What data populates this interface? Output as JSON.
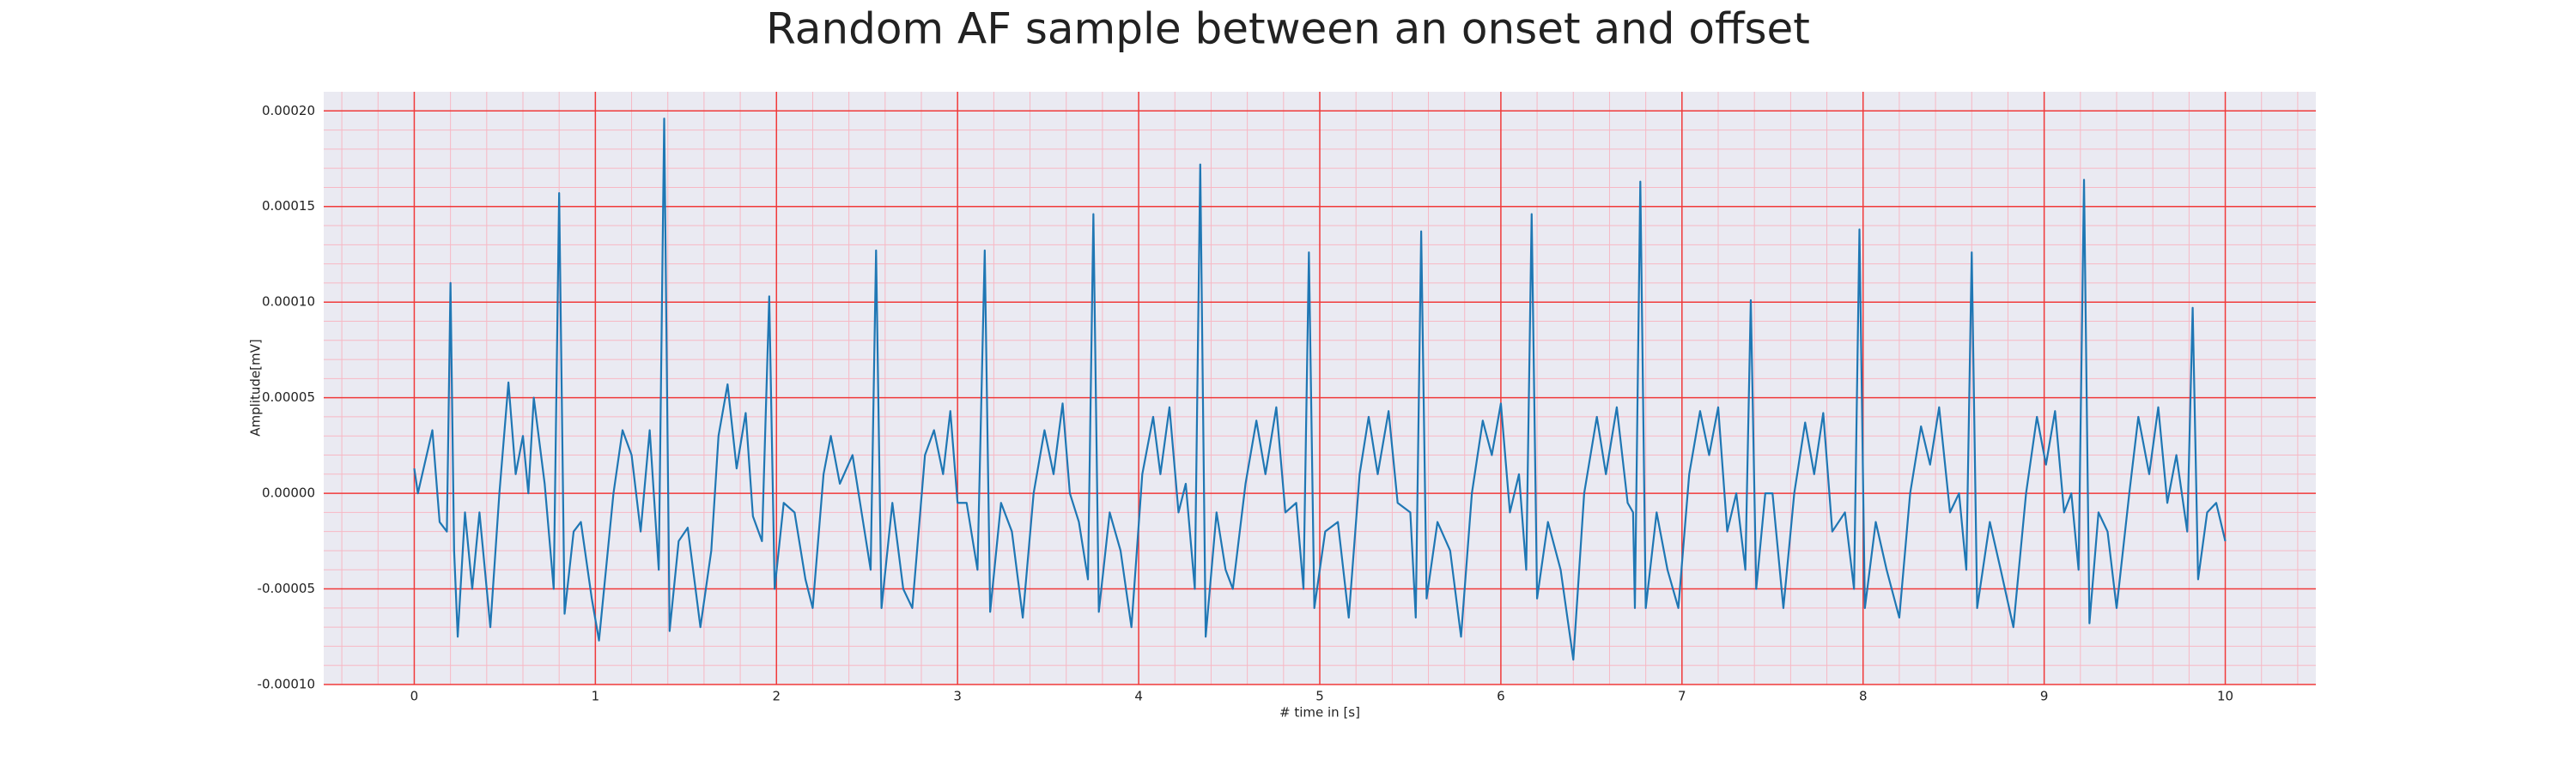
{
  "chart_data": {
    "type": "line",
    "title": "Random AF sample between an onset and offset",
    "xlabel": "# time in [s]",
    "ylabel": "Amplitude[mV]",
    "color": "#1f77b4",
    "background": "#eaeaf2",
    "grid": true,
    "grid_color": "#f03a3a",
    "minor_grid": true,
    "minor_grid_color": "#f7b8c4",
    "xlim": [
      -0.5,
      10.5
    ],
    "ylim": [
      -0.0001,
      0.00021
    ],
    "xticks": [
      0,
      1,
      2,
      3,
      4,
      5,
      6,
      7,
      8,
      9,
      10
    ],
    "yticks": [
      {
        "value": -0.0001,
        "label": "-0.00010"
      },
      {
        "value": -5e-05,
        "label": "-0.00005"
      },
      {
        "value": 0,
        "label": "0.00000"
      },
      {
        "value": 5e-05,
        "label": "0.00005"
      },
      {
        "value": 0.0001,
        "label": "0.00010"
      },
      {
        "value": 0.00015,
        "label": "0.00015"
      },
      {
        "value": 0.0002,
        "label": "0.00020"
      }
    ],
    "xminorticks": [
      -0.4,
      -0.2,
      0,
      0.2,
      0.4,
      0.6,
      0.8,
      1,
      1.2,
      1.4,
      1.6,
      1.8,
      2,
      2.2,
      2.4,
      2.6,
      2.8,
      3,
      3.2,
      3.4,
      3.6,
      3.8,
      4,
      4.2,
      4.4,
      4.6,
      4.8,
      5,
      5.2,
      5.4,
      5.6,
      5.8,
      6,
      6.2,
      6.4,
      6.6,
      6.8,
      7,
      7.2,
      7.4,
      7.6,
      7.8,
      8,
      8.2,
      8.4,
      8.6,
      8.8,
      9,
      9.2,
      9.4,
      9.6,
      9.8,
      10,
      10.2,
      10.4
    ],
    "yminorticks": [
      -0.0001,
      -9e-05,
      -8e-05,
      -7e-05,
      -6e-05,
      -5e-05,
      -4e-05,
      -3e-05,
      -2e-05,
      -1e-05,
      0,
      1e-05,
      2e-05,
      3e-05,
      4e-05,
      5e-05,
      6e-05,
      7e-05,
      8e-05,
      9e-05,
      0.0001,
      0.00011,
      0.00012,
      0.00013,
      0.00014,
      0.00015,
      0.00016,
      0.00017,
      0.00018,
      0.00019,
      0.0002
    ],
    "x": [
      0,
      0.02,
      0.1,
      0.14,
      0.18,
      0.2,
      0.22,
      0.24,
      0.28,
      0.32,
      0.36,
      0.42,
      0.47,
      0.52,
      0.56,
      0.6,
      0.63,
      0.66,
      0.72,
      0.77,
      0.8,
      0.83,
      0.88,
      0.92,
      0.98,
      1.02,
      1.1,
      1.15,
      1.2,
      1.25,
      1.3,
      1.35,
      1.38,
      1.41,
      1.46,
      1.51,
      1.58,
      1.64,
      1.68,
      1.73,
      1.78,
      1.83,
      1.87,
      1.92,
      1.96,
      1.99,
      2.04,
      2.1,
      2.16,
      2.2,
      2.26,
      2.3,
      2.35,
      2.42,
      2.47,
      2.52,
      2.55,
      2.58,
      2.64,
      2.7,
      2.75,
      2.82,
      2.87,
      2.92,
      2.96,
      3.0,
      3.05,
      3.11,
      3.15,
      3.18,
      3.24,
      3.3,
      3.36,
      3.42,
      3.48,
      3.53,
      3.58,
      3.62,
      3.67,
      3.72,
      3.75,
      3.78,
      3.84,
      3.9,
      3.96,
      4.02,
      4.08,
      4.12,
      4.17,
      4.22,
      4.26,
      4.31,
      4.34,
      4.37,
      4.43,
      4.48,
      4.52,
      4.59,
      4.65,
      4.7,
      4.76,
      4.81,
      4.87,
      4.91,
      4.94,
      4.97,
      5.03,
      5.1,
      5.16,
      5.22,
      5.27,
      5.32,
      5.38,
      5.43,
      5.5,
      5.53,
      5.56,
      5.59,
      5.65,
      5.72,
      5.78,
      5.84,
      5.9,
      5.95,
      6.0,
      6.05,
      6.1,
      6.14,
      6.17,
      6.2,
      6.26,
      6.33,
      6.4,
      6.46,
      6.53,
      6.58,
      6.64,
      6.7,
      6.73,
      6.74,
      6.77,
      6.8,
      6.86,
      6.92,
      6.98,
      7.04,
      7.1,
      7.15,
      7.2,
      7.25,
      7.3,
      7.35,
      7.38,
      7.41,
      7.46,
      7.5,
      7.56,
      7.62,
      7.68,
      7.73,
      7.78,
      7.83,
      7.9,
      7.95,
      7.98,
      8.01,
      8.07,
      8.13,
      8.2,
      8.26,
      8.32,
      8.37,
      8.42,
      8.48,
      8.53,
      8.57,
      8.6,
      8.63,
      8.7,
      8.76,
      8.83,
      8.9,
      8.96,
      9.01,
      9.06,
      9.11,
      9.15,
      9.19,
      9.22,
      9.25,
      9.3,
      9.35,
      9.4,
      9.47,
      9.52,
      9.58,
      9.63,
      9.68,
      9.73,
      9.79,
      9.82,
      9.85,
      9.9,
      9.95,
      10.0
    ],
    "values": [
      1.3e-05,
      0,
      3.3e-05,
      -1.5e-05,
      -2e-05,
      0.00011,
      -3e-05,
      -7.5e-05,
      -1e-05,
      -5e-05,
      -1e-05,
      -7e-05,
      0,
      5.8e-05,
      1e-05,
      3e-05,
      0,
      5e-05,
      5e-06,
      -5e-05,
      0.000157,
      -6.3e-05,
      -2e-05,
      -1.5e-05,
      -5.5e-05,
      -7.7e-05,
      0,
      3.3e-05,
      2e-05,
      -2e-05,
      3.3e-05,
      -4e-05,
      0.000196,
      -7.2e-05,
      -2.5e-05,
      -1.8e-05,
      -7e-05,
      -3e-05,
      3e-05,
      5.7e-05,
      1.3e-05,
      4.2e-05,
      -1.2e-05,
      -2.5e-05,
      0.000103,
      -5e-05,
      -5e-06,
      -1e-05,
      -4.5e-05,
      -6e-05,
      1e-05,
      3e-05,
      5e-06,
      2e-05,
      -1e-05,
      -4e-05,
      0.000127,
      -6e-05,
      -5e-06,
      -5e-05,
      -6e-05,
      2e-05,
      3.3e-05,
      1e-05,
      4.3e-05,
      -5e-06,
      -5e-06,
      -4e-05,
      0.000127,
      -6.2e-05,
      -5e-06,
      -2e-05,
      -6.5e-05,
      0,
      3.3e-05,
      1e-05,
      4.7e-05,
      0,
      -1.5e-05,
      -4.5e-05,
      0.000146,
      -6.2e-05,
      -1e-05,
      -3e-05,
      -7e-05,
      1e-05,
      4e-05,
      1e-05,
      4.5e-05,
      -1e-05,
      5e-06,
      -5e-05,
      0.000172,
      -7.5e-05,
      -1e-05,
      -4e-05,
      -5e-05,
      5e-06,
      3.8e-05,
      1e-05,
      4.5e-05,
      -1e-05,
      -5e-06,
      -5e-05,
      0.000126,
      -6e-05,
      -2e-05,
      -1.5e-05,
      -6.5e-05,
      1e-05,
      4e-05,
      1e-05,
      4.3e-05,
      -5e-06,
      -1e-05,
      -6.5e-05,
      0.000137,
      -5.5e-05,
      -1.5e-05,
      -3e-05,
      -7.5e-05,
      0,
      3.8e-05,
      2e-05,
      4.7e-05,
      -1e-05,
      1e-05,
      -4e-05,
      0.000146,
      -5.5e-05,
      -1.5e-05,
      -4e-05,
      -8.7e-05,
      0,
      4e-05,
      1e-05,
      4.5e-05,
      -5e-06,
      -1e-05,
      -6e-05,
      0.000163,
      -6e-05,
      -1e-05,
      -4e-05,
      -6e-05,
      1e-05,
      4.3e-05,
      2e-05,
      4.5e-05,
      -2e-05,
      0,
      -4e-05,
      0.000101,
      -5e-05,
      0,
      0,
      -6e-05,
      0,
      3.7e-05,
      1e-05,
      4.2e-05,
      -2e-05,
      -1e-05,
      -5e-05,
      0.000138,
      -6e-05,
      -1.5e-05,
      -4e-05,
      -6.5e-05,
      0,
      3.5e-05,
      1.5e-05,
      4.5e-05,
      -1e-05,
      0,
      -4e-05,
      0.000126,
      -6e-05,
      -1.5e-05,
      -4e-05,
      -7e-05,
      0,
      4e-05,
      1.5e-05,
      4.3e-05,
      -1e-05,
      0,
      -4e-05,
      0.000164,
      -6.8e-05,
      -1e-05,
      -2e-05,
      -6e-05,
      0,
      4e-05,
      1e-05,
      4.5e-05,
      -5e-06,
      2e-05,
      -2e-05,
      9.7e-05,
      -4.5e-05,
      -1e-05,
      -5e-06,
      -2.5e-05
    ]
  }
}
